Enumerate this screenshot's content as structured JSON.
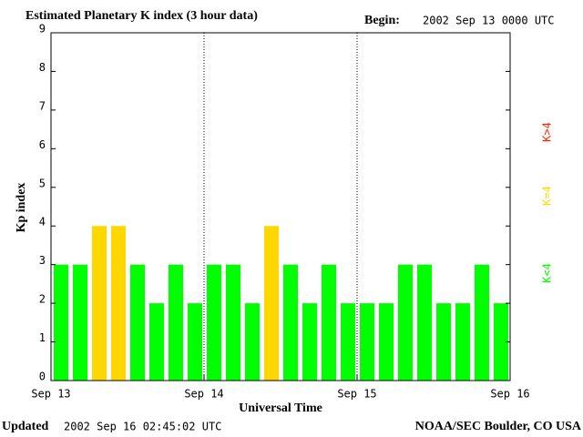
{
  "chart_data": {
    "type": "bar",
    "title": "Estimated Planetary K index (3 hour data)",
    "begin_label": "Begin:",
    "begin_value": "2002 Sep 13 0000 UTC",
    "ylabel": "Kp index",
    "xlabel": "Universal Time",
    "categories": [
      null,
      null,
      null,
      null,
      null,
      null,
      null,
      null,
      null,
      null,
      null,
      null,
      null,
      null,
      null,
      null,
      null,
      null,
      null,
      null,
      null,
      null,
      null,
      null
    ],
    "values": [
      3,
      3,
      4,
      4,
      3,
      2,
      3,
      2,
      3,
      3,
      2,
      4,
      3,
      2,
      3,
      2,
      2,
      2,
      3,
      3,
      2,
      2,
      3,
      2
    ],
    "colors": [
      "#00ff00",
      "#00ff00",
      "#ffd700",
      "#ffd700",
      "#00ff00",
      "#00ff00",
      "#00ff00",
      "#00ff00",
      "#00ff00",
      "#00ff00",
      "#00ff00",
      "#ffd700",
      "#00ff00",
      "#00ff00",
      "#00ff00",
      "#00ff00",
      "#00ff00",
      "#00ff00",
      "#00ff00",
      "#00ff00",
      "#00ff00",
      "#00ff00",
      "#00ff00",
      "#00ff00"
    ],
    "xtick_labels": [
      "Sep 13",
      "Sep 14",
      "Sep 15",
      "Sep 16"
    ],
    "ylim": [
      0,
      9
    ],
    "yticks": [
      0,
      1,
      2,
      3,
      4,
      5,
      6,
      7,
      8,
      9
    ],
    "grid": false,
    "legend": [
      {
        "label": "K<4",
        "color": "#00ff00"
      },
      {
        "label": "K=4",
        "color": "#ffd700"
      },
      {
        "label": "K>4",
        "color": "#ff2000"
      }
    ],
    "updated_label": "Updated",
    "updated_value": "2002 Sep 16 02:45:02 UTC",
    "source": "NOAA/SEC Boulder, CO USA"
  }
}
